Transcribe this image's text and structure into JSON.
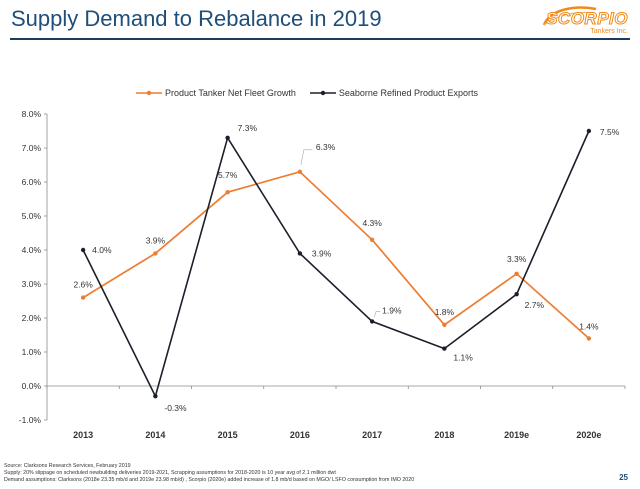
{
  "slide": {
    "title": "Supply Demand to Rebalance in 2019",
    "logo_text": "SCORPIO",
    "logo_sub": "Tankers Inc.",
    "page_number": "25"
  },
  "footnotes": [
    "Source: Clarksons Research Services, February 2019",
    "Supply: 20% slippage on scheduled newbuilding deliveries 2019-2021, Scrapping assumptions for 2018-2020 is 10 year avg of 2.1 million dwt",
    "Demand assumptions: Clarksons (2018e 23.35 mb/d and 2019e 23.98 mb/d) , Scorpio (2020e) added increase of 1.8 mb/d based on MGO/ LSFO consumption from IMO 2020"
  ],
  "colors": {
    "title": "#1f4e79",
    "accent": "#f08a1a",
    "fleet_series": "#ed7d31",
    "exports_series": "#1a1f2b"
  },
  "chart_data": {
    "type": "line",
    "title": "",
    "xlabel": "",
    "ylabel": "",
    "categories": [
      "2013",
      "2014",
      "2015",
      "2016",
      "2017",
      "2018",
      "2019e",
      "2020e"
    ],
    "yticks": [
      "8.0%",
      "7.0%",
      "6.0%",
      "5.0%",
      "4.0%",
      "3.0%",
      "2.0%",
      "1.0%",
      "0.0%",
      "-1.0%"
    ],
    "ylim": [
      -1,
      8
    ],
    "grid": false,
    "legend_position": "top",
    "series": [
      {
        "name": "Product Tanker Net Fleet Growth",
        "color": "#ed7d31",
        "values": [
          2.6,
          3.9,
          5.7,
          6.3,
          4.3,
          1.8,
          3.3,
          1.4
        ],
        "labels": [
          "2.6%",
          "3.9%",
          "5.7%",
          "6.3%",
          "4.3%",
          "1.8%",
          "3.3%",
          "1.4%"
        ]
      },
      {
        "name": "Seaborne Refined Product Exports",
        "color": "#1a1f2b",
        "values": [
          4.0,
          -0.3,
          7.3,
          3.9,
          1.9,
          1.1,
          2.7,
          7.5
        ],
        "labels": [
          "4.0%",
          "-0.3%",
          "7.3%",
          "3.9%",
          "1.9%",
          "1.1%",
          "2.7%",
          "7.5%"
        ]
      }
    ]
  }
}
